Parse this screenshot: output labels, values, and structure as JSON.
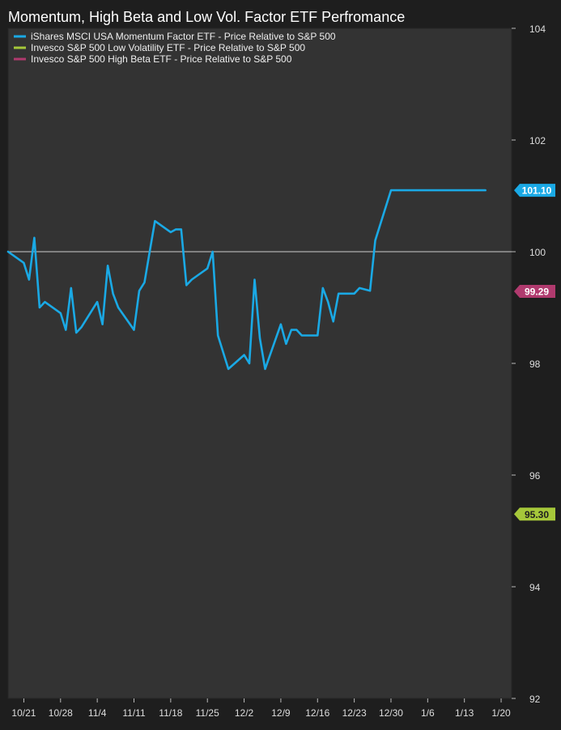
{
  "chart_data": {
    "type": "line",
    "title": "Momentum, High Beta and Low Vol. Factor ETF Perfromance",
    "xlabel": "",
    "ylabel": "",
    "ylim": [
      92,
      104
    ],
    "yticks": [
      92,
      94,
      96,
      98,
      100,
      102,
      104
    ],
    "xlim": [
      "2019-10-18",
      "2020-01-22"
    ],
    "xticks": [
      {
        "date": "2019-10-21",
        "label": "10/21"
      },
      {
        "date": "2019-10-28",
        "label": "10/28"
      },
      {
        "date": "2019-11-04",
        "label": "11/4"
      },
      {
        "date": "2019-11-11",
        "label": "11/11"
      },
      {
        "date": "2019-11-18",
        "label": "11/18"
      },
      {
        "date": "2019-11-25",
        "label": "11/25"
      },
      {
        "date": "2019-12-02",
        "label": "12/2"
      },
      {
        "date": "2019-12-09",
        "label": "12/9"
      },
      {
        "date": "2019-12-16",
        "label": "12/16"
      },
      {
        "date": "2019-12-23",
        "label": "12/23"
      },
      {
        "date": "2019-12-30",
        "label": "12/30"
      },
      {
        "date": "2020-01-06",
        "label": "1/6"
      },
      {
        "date": "2020-01-13",
        "label": "1/13"
      },
      {
        "date": "2020-01-20",
        "label": "1/20"
      }
    ],
    "reference_line": 100,
    "grid": false,
    "legend_position": "top-left",
    "series": [
      {
        "name": "iShares MSCI USA Momentum Factor ETF - Price Relative to S&P 500",
        "color": "#1aa9e5",
        "end_label": "101.10",
        "dates": [
          "2019-10-18",
          "2019-10-21",
          "2019-10-22",
          "2019-10-23",
          "2019-10-24",
          "2019-10-25",
          "2019-10-28",
          "2019-10-29",
          "2019-10-30",
          "2019-10-31",
          "2019-11-01",
          "2019-11-04",
          "2019-11-05",
          "2019-11-06",
          "2019-11-07",
          "2019-11-08",
          "2019-11-11",
          "2019-11-12",
          "2019-11-13",
          "2019-11-14",
          "2019-11-15",
          "2019-11-18",
          "2019-11-19",
          "2019-11-20",
          "2019-11-21",
          "2019-11-22",
          "2019-11-25",
          "2019-11-26",
          "2019-11-27",
          "2019-11-29",
          "2019-12-02",
          "2019-12-03",
          "2019-12-04",
          "2019-12-05",
          "2019-12-06",
          "2019-12-09",
          "2019-12-10",
          "2019-12-11",
          "2019-12-12",
          "2019-12-13",
          "2019-12-16",
          "2019-12-17",
          "2019-12-18",
          "2019-12-19",
          "2019-12-20",
          "2019-12-23",
          "2019-12-24",
          "2019-12-26",
          "2019-12-27",
          "2019-12-30",
          "2019-12-31",
          "2020-01-02",
          "2020-01-03",
          "2020-01-06",
          "2020-01-07",
          "2020-01-08",
          "2020-01-09",
          "2020-01-10",
          "2020-01-13",
          "2020-01-14",
          "2020-01-15",
          "2020-01-16",
          "2020-01-17"
        ],
        "values": [
          100.0,
          99.8,
          99.5,
          100.25,
          99.0,
          99.1,
          98.9,
          98.6,
          99.35,
          98.55,
          98.65,
          99.1,
          98.7,
          99.75,
          99.25,
          99.0,
          98.6,
          99.3,
          99.45,
          100.0,
          100.55,
          100.35,
          100.4,
          100.4,
          99.4,
          99.5,
          99.7,
          100.0,
          98.5,
          97.9,
          98.15,
          98.0,
          99.5,
          98.45,
          97.9,
          98.7,
          98.35,
          98.6,
          98.6,
          98.5,
          98.5,
          99.35,
          99.1,
          98.75,
          99.25,
          99.25,
          99.35,
          99.3,
          100.2,
          101.1,
          101.1,
          101.1,
          101.1,
          101.1,
          101.1,
          101.1,
          101.1,
          101.1,
          101.1,
          101.1,
          101.1,
          101.1,
          101.1
        ]
      },
      {
        "name": "Invesco S&P 500 Low Volatility ETF - Price Relative to S&P 500",
        "color": "#a6c83a",
        "end_label": "95.30",
        "dates": [],
        "values": []
      },
      {
        "name": "Invesco S&P 500 High Beta ETF - Price Relative to S&P 500",
        "color": "#b03a6e",
        "end_label": "99.29",
        "dates": [],
        "values": []
      }
    ]
  }
}
